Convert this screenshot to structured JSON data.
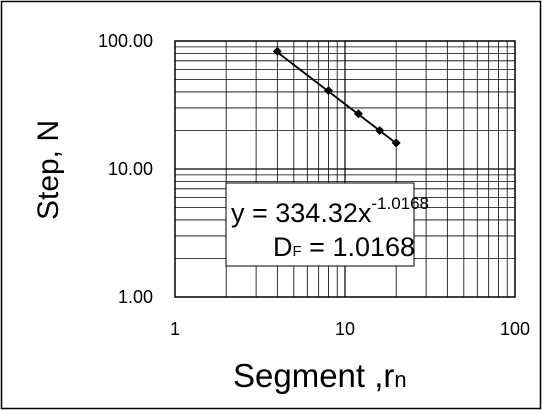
{
  "chart_data": {
    "type": "scatter",
    "x_scale": "log",
    "y_scale": "log",
    "xlim": [
      1,
      100
    ],
    "ylim": [
      1,
      100
    ],
    "x_ticks": [
      "1",
      "10",
      "100"
    ],
    "y_ticks": [
      "1.00",
      "10.00",
      "100.00"
    ],
    "xlabel": "Segment ,",
    "xlabel_symbol": "r",
    "xlabel_subscript": "n",
    "ylabel": "Step, N",
    "grid": true,
    "series": [
      {
        "x": [
          4,
          8,
          12,
          16,
          20
        ],
        "y": [
          83,
          41,
          27,
          20,
          16
        ]
      }
    ],
    "fit": {
      "type": "power",
      "a": 334.32,
      "b": -1.0168,
      "equation_main": "y = 334.32x",
      "equation_exponent": "-1.0168",
      "df_symbol": "D",
      "df_subscript": "F",
      "df_value": " = 1.0168"
    },
    "colors": {
      "line": "#000000",
      "marker": "#000000",
      "grid": "#000000",
      "background": "#ffffff"
    }
  }
}
